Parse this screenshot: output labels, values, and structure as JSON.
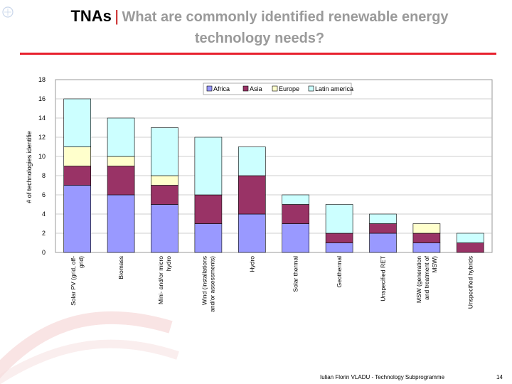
{
  "slide": {
    "title_lead": "TNAs",
    "title_separator": "|",
    "title_sub_line1": "What are commonly identified renewable energy",
    "title_sub_line2": "technology needs?",
    "footer_author": "Iulian Florin VLADU - Technology Subprogramme",
    "footer_page": "14",
    "accent_color": "#e8212e"
  },
  "chart_data": {
    "type": "bar",
    "stacked": true,
    "categories": [
      "Solar PV (grid, off-grid)",
      "Biomass",
      "Mini- and/or micro hydro",
      "Wind (installations and/or assessments)",
      "Hydro",
      "Solar thermal",
      "Geothermal",
      "Unspecified RET",
      "MSW (generation and treatment of MSW)",
      "Unspecified hybrids"
    ],
    "series": [
      {
        "name": "Africa",
        "color": "#9999ff",
        "values": [
          7,
          6,
          5,
          3,
          4,
          3,
          1,
          2,
          1,
          0
        ]
      },
      {
        "name": "Asia",
        "color": "#993366",
        "values": [
          2,
          3,
          2,
          3,
          4,
          2,
          1,
          1,
          1,
          1
        ]
      },
      {
        "name": "Europe",
        "color": "#ffffcc",
        "values": [
          2,
          1,
          1,
          0,
          0,
          0,
          0,
          0,
          1,
          0
        ]
      },
      {
        "name": "Latin america",
        "color": "#ccffff",
        "values": [
          5,
          4,
          5,
          6,
          3,
          1,
          3,
          1,
          0,
          1
        ]
      }
    ],
    "xlabel": "",
    "ylabel": "# of technologies identifie",
    "ylim": [
      0,
      18
    ],
    "yticks": [
      0,
      2,
      4,
      6,
      8,
      10,
      12,
      14,
      16,
      18
    ],
    "grid": true,
    "legend": "top-right"
  }
}
